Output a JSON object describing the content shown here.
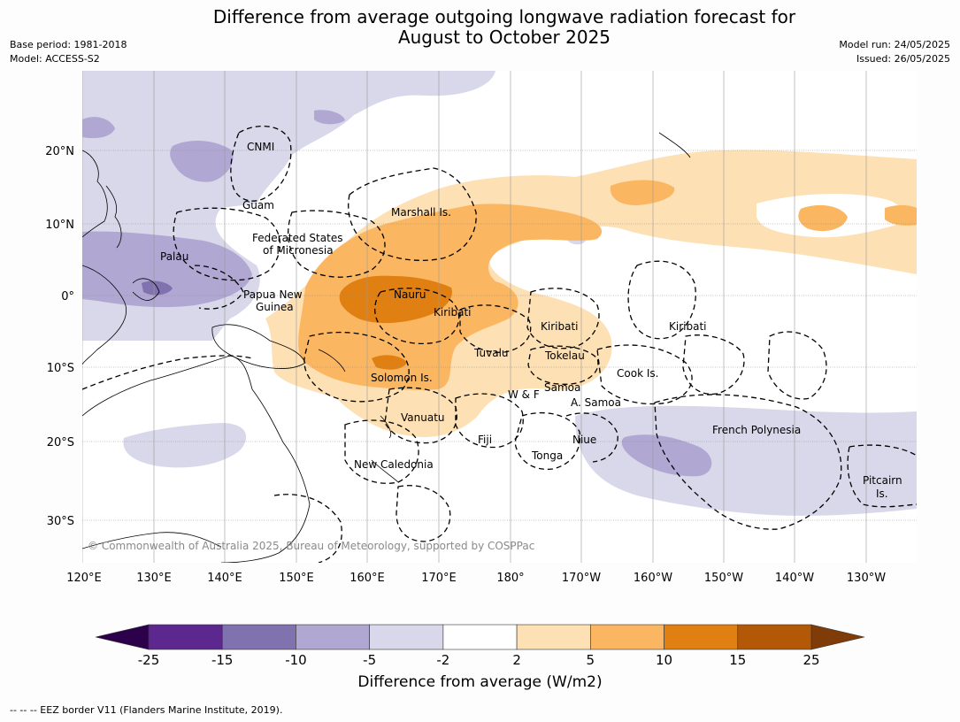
{
  "title_line1": "Difference from average outgoing longwave radiation forecast for",
  "title_line2": "August to October 2025",
  "meta_left": [
    "Base period: 1981-2018",
    "Model: ACCESS-S2"
  ],
  "meta_right": [
    "Model run: 24/05/2025",
    "Issued: 26/05/2025"
  ],
  "lon_labels": [
    "120°E",
    "130°E",
    "140°E",
    "150°E",
    "160°E",
    "170°E",
    "180°",
    "170°W",
    "160°W",
    "150°W",
    "140°W",
    "130°W"
  ],
  "lat_labels": [
    "20°N",
    "10°N",
    "0°",
    "10°S",
    "20°S",
    "30°S"
  ],
  "copyright": "© Commonwealth of Australia 2025, Bureau of Meteorology, supported by COSPPac",
  "region_labels": [
    "CNMI",
    "Guam",
    "Marshall Is.",
    "Federated States",
    "of Micronesia",
    "Palau",
    "Papua New",
    "Guinea",
    "Nauru",
    "Kiribati",
    "Kiribati",
    "Kiribati",
    "Tuvalu",
    "Tokelau",
    "Cook Is.",
    "Solomon Is.",
    "W & F",
    "Samoa",
    "A. Samoa",
    "Vanuatu",
    "Fiji",
    "Niue",
    "Tonga",
    "New Caledonia",
    "French Polynesia",
    "Pitcairn",
    "Is."
  ],
  "colorbar": {
    "ticks": [
      "-25",
      "-15",
      "-10",
      "-5",
      "-2",
      "2",
      "5",
      "10",
      "15",
      "25"
    ],
    "colors": [
      "#5c2890",
      "#8072ae",
      "#b0a7d2",
      "#d8d8ea",
      "#ffffff",
      "#fde0b4",
      "#fbb662",
      "#e07f12",
      "#b35807"
    ],
    "under_color": "#2d004b",
    "over_color": "#7f3b08",
    "label": "Difference from average (W/m2)"
  },
  "footnote": "--  --  -- EEZ border V11 (Flanders Marine Institute, 2019)."
}
